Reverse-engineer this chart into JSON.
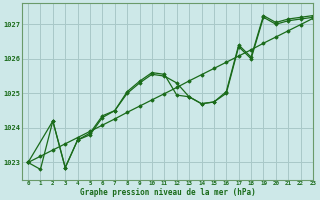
{
  "title": "Graphe pression niveau de la mer (hPa)",
  "background_color": "#cde8e8",
  "line_color": "#1a6b1a",
  "grid_color": "#a8c8c8",
  "xlim": [
    -0.5,
    23
  ],
  "ylim": [
    1022.5,
    1027.6
  ],
  "yticks": [
    1023,
    1024,
    1025,
    1026,
    1027
  ],
  "xticks": [
    0,
    1,
    2,
    3,
    4,
    5,
    6,
    7,
    8,
    9,
    10,
    11,
    12,
    13,
    14,
    15,
    16,
    17,
    18,
    19,
    20,
    21,
    22,
    23
  ],
  "series1_x": [
    0,
    1,
    2,
    3,
    4,
    5,
    6,
    7,
    8,
    9,
    10,
    11,
    12,
    13,
    14,
    15,
    16,
    17,
    18,
    19,
    20,
    21,
    22,
    23
  ],
  "series1_y": [
    1023.0,
    1023.18,
    1023.36,
    1023.54,
    1023.72,
    1023.9,
    1024.08,
    1024.26,
    1024.45,
    1024.63,
    1024.81,
    1024.99,
    1025.17,
    1025.36,
    1025.54,
    1025.72,
    1025.9,
    1026.08,
    1026.26,
    1026.45,
    1026.63,
    1026.81,
    1026.99,
    1027.17
  ],
  "series2_x": [
    0,
    2,
    3,
    4,
    5,
    6,
    7,
    8,
    9,
    10,
    11,
    12,
    13,
    14,
    15,
    16,
    17,
    18,
    19,
    20,
    21,
    22,
    23
  ],
  "series2_y": [
    1023.0,
    1024.2,
    1022.85,
    1023.65,
    1023.8,
    1024.3,
    1024.5,
    1025.0,
    1025.3,
    1025.55,
    1025.5,
    1025.3,
    1024.9,
    1024.7,
    1024.75,
    1025.0,
    1026.35,
    1026.0,
    1027.2,
    1027.0,
    1027.1,
    1027.15,
    1027.2
  ],
  "series3_x": [
    0,
    1,
    2,
    3,
    4,
    5,
    6,
    7,
    8,
    9,
    10,
    11,
    12,
    13,
    14,
    15,
    16,
    17,
    18,
    19,
    20,
    21,
    22,
    23
  ],
  "series3_y": [
    1023.0,
    1022.8,
    1024.2,
    1022.85,
    1023.65,
    1023.85,
    1024.35,
    1024.5,
    1025.05,
    1025.35,
    1025.6,
    1025.55,
    1024.95,
    1024.9,
    1024.7,
    1024.75,
    1025.05,
    1026.4,
    1026.05,
    1027.25,
    1027.05,
    1027.15,
    1027.2,
    1027.25
  ]
}
